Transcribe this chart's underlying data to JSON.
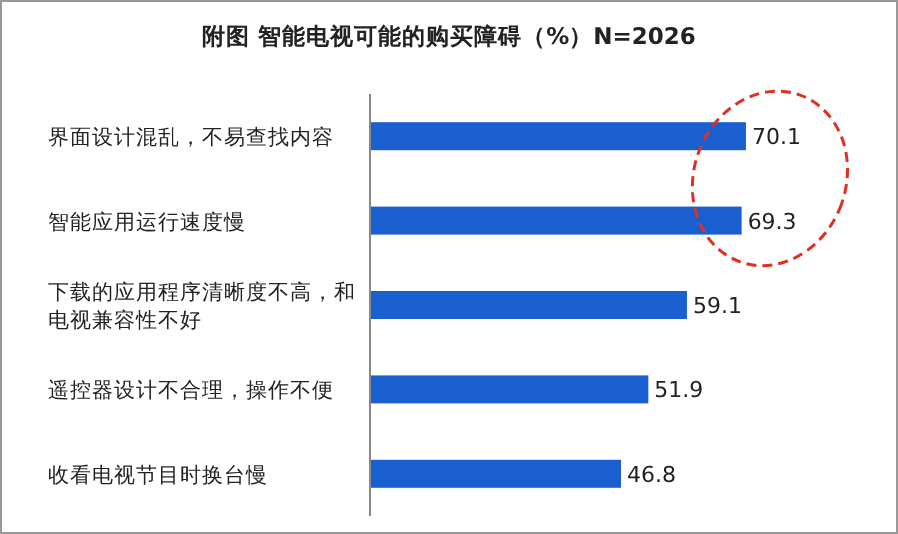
{
  "chart_data": {
    "type": "bar",
    "orientation": "horizontal",
    "title": "附图  智能电视可能的购买障碍（%）N=2026",
    "categories": [
      "界面设计混乱，不易查找内容",
      "智能应用运行速度慢",
      "下载的应用程序清晰度不高，和电视兼容性不好",
      "遥控器设计不合理，操作不便",
      "收看电视节目时换台慢"
    ],
    "values": [
      70.1,
      69.3,
      59.1,
      51.9,
      46.8
    ],
    "color": "#1a5fd0",
    "data_labels": true
  }
}
